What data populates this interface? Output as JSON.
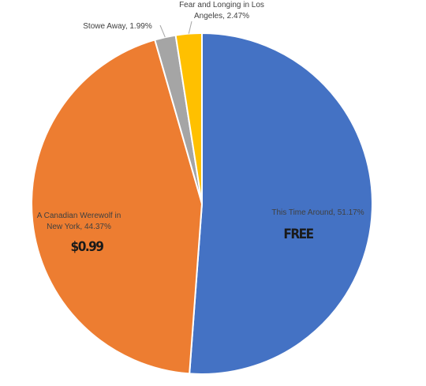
{
  "chart_data": {
    "type": "pie",
    "title": "",
    "start_angle_deg": 0,
    "direction": "clockwise",
    "slices": [
      {
        "label": "This Time Around",
        "value": 51.17,
        "label_text": "This Time Around, 51.17%",
        "color": "#4472C4",
        "price": "FREE"
      },
      {
        "label": "A Canadian Werewolf in New York",
        "value": 44.37,
        "label_lines": [
          "A Canadian Werewolf in",
          "New York, 44.37%"
        ],
        "color": "#ED7D31",
        "price": "$0.99"
      },
      {
        "label": "Stowe Away",
        "value": 1.99,
        "label_text": "Stowe Away, 1.99%",
        "color": "#A5A5A5"
      },
      {
        "label": "Fear and Longing in Los Angeles",
        "value": 2.47,
        "label_lines": [
          "Fear and Longing in Los",
          "Angeles, 2.47%"
        ],
        "color": "#FFC000"
      }
    ]
  }
}
